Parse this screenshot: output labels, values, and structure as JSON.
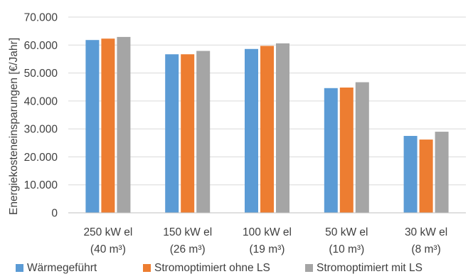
{
  "chart_data": {
    "type": "bar",
    "title": "",
    "xlabel": "",
    "ylabel": "Energiekosteneinsparungen [€/Jahr]",
    "ylim": [
      0,
      70000
    ],
    "yticks": [
      0,
      10000,
      20000,
      30000,
      40000,
      50000,
      60000,
      70000
    ],
    "ytick_labels": [
      "0",
      "10.000",
      "20.000",
      "30.000",
      "40.000",
      "50.000",
      "60.000",
      "70.000"
    ],
    "categories": [
      [
        "250 kW el",
        "(40 m³)"
      ],
      [
        "150 kW el",
        "(26 m³)"
      ],
      [
        "100 kW el",
        "(19 m³)"
      ],
      [
        "50 kW el",
        "(10 m³)"
      ],
      [
        "30 kW el",
        "(8 m³)"
      ]
    ],
    "grid": true,
    "legend_position": "bottom",
    "series": [
      {
        "name": "Wärmegeführt",
        "color": "#5b9bd5",
        "values": [
          61800,
          56700,
          58600,
          44600,
          27500
        ]
      },
      {
        "name": "Stromoptimiert ohne LS",
        "color": "#ed7d31",
        "values": [
          62300,
          56700,
          59700,
          44800,
          26200
        ]
      },
      {
        "name": "Stromoptimiert mit LS",
        "color": "#a5a5a5",
        "values": [
          62900,
          57900,
          60600,
          46700,
          29000
        ]
      }
    ]
  }
}
